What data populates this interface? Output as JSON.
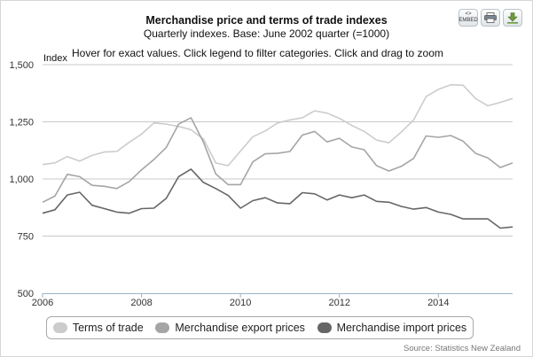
{
  "toolbar": {
    "embed_top": "<>",
    "embed_bottom": "EMBED",
    "print_icon": "printer-icon",
    "download_icon": "download-icon"
  },
  "hint": "Hover for exact values. Click legend to filter categories. Click and drag to zoom",
  "source": "Source: Statistics New Zealand",
  "colors": {
    "terms": "#cccccc",
    "export": "#a5a5a5",
    "import": "#666666",
    "grid": "#c8c8c8",
    "axis": "#9bb3c9"
  },
  "chart_data": {
    "type": "line",
    "title": "Merchandise price and terms of trade indexes",
    "subtitle": "Quarterly indexes. Base: June 2002 quarter (=1000)",
    "ylabel": "Index",
    "xlabel": "",
    "ylim": [
      500,
      1500
    ],
    "yticks": [
      500,
      750,
      1000,
      1250,
      1500
    ],
    "ytick_labels": [
      "500",
      "750",
      "1,000",
      "1,250",
      "1,500"
    ],
    "xlim": [
      2006,
      2015.5
    ],
    "xticks": [
      2006,
      2008,
      2010,
      2012,
      2014
    ],
    "xtick_labels": [
      "2006",
      "2008",
      "2010",
      "2012",
      "2014"
    ],
    "x": [
      2006.0,
      2006.25,
      2006.5,
      2006.75,
      2007.0,
      2007.25,
      2007.5,
      2007.75,
      2008.0,
      2008.25,
      2008.5,
      2008.75,
      2009.0,
      2009.25,
      2009.5,
      2009.75,
      2010.0,
      2010.25,
      2010.5,
      2010.75,
      2011.0,
      2011.25,
      2011.5,
      2011.75,
      2012.0,
      2012.25,
      2012.5,
      2012.75,
      2013.0,
      2013.25,
      2013.5,
      2013.75,
      2014.0,
      2014.25,
      2014.5,
      2014.75,
      2015.0,
      2015.25,
      2015.5
    ],
    "series": [
      {
        "name": "Terms of trade",
        "values": [
          1063,
          1070,
          1098,
          1078,
          1103,
          1118,
          1120,
          1160,
          1196,
          1245,
          1240,
          1230,
          1215,
          1175,
          1070,
          1058,
          1122,
          1185,
          1210,
          1245,
          1258,
          1268,
          1298,
          1288,
          1265,
          1234,
          1208,
          1170,
          1158,
          1205,
          1258,
          1360,
          1392,
          1412,
          1410,
          1352,
          1320,
          1335,
          1352
        ]
      },
      {
        "name": "Merchandise export prices",
        "values": [
          898,
          925,
          1020,
          1010,
          972,
          968,
          958,
          988,
          1040,
          1085,
          1138,
          1240,
          1268,
          1162,
          1022,
          975,
          975,
          1075,
          1110,
          1112,
          1120,
          1192,
          1208,
          1162,
          1178,
          1140,
          1128,
          1058,
          1035,
          1055,
          1090,
          1188,
          1182,
          1190,
          1165,
          1112,
          1092,
          1050,
          1070
        ]
      },
      {
        "name": "Merchandise import prices",
        "values": [
          850,
          865,
          930,
          942,
          885,
          870,
          855,
          850,
          870,
          872,
          915,
          1010,
          1043,
          985,
          958,
          928,
          872,
          905,
          918,
          895,
          892,
          940,
          935,
          908,
          930,
          918,
          930,
          902,
          898,
          880,
          868,
          875,
          855,
          845,
          825,
          825,
          825,
          785,
          790
        ]
      }
    ],
    "legend_position": "bottom"
  }
}
